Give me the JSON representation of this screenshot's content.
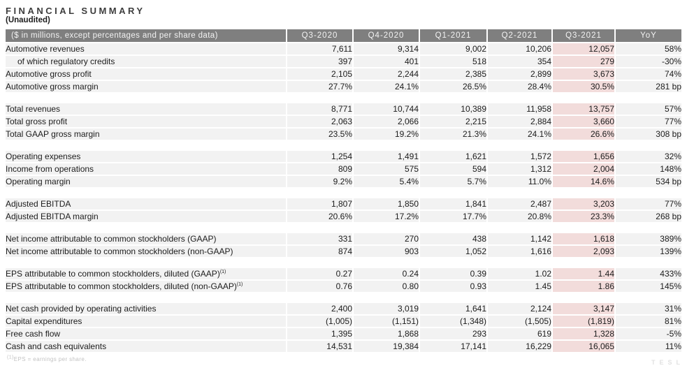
{
  "title": "FINANCIAL SUMMARY",
  "subtitle": "(Unaudited)",
  "table": {
    "header": [
      "($ in millions, except percentages and per share data)",
      "Q3-2020",
      "Q4-2020",
      "Q1-2021",
      "Q2-2021",
      "Q3-2021",
      "YoY"
    ],
    "highlight_column": "Q3-2021",
    "sections": [
      {
        "rows": [
          {
            "label": "Automotive revenues",
            "indent": false,
            "sup": "",
            "values": [
              "7,611",
              "9,314",
              "9,002",
              "10,206",
              "12,057",
              "58%"
            ]
          },
          {
            "label": "of which regulatory credits",
            "indent": true,
            "sup": "",
            "values": [
              "397",
              "401",
              "518",
              "354",
              "279",
              "-30%"
            ]
          },
          {
            "label": "Automotive gross profit",
            "indent": false,
            "sup": "",
            "values": [
              "2,105",
              "2,244",
              "2,385",
              "2,899",
              "3,673",
              "74%"
            ]
          },
          {
            "label": "Automotive gross margin",
            "indent": false,
            "sup": "",
            "values": [
              "27.7%",
              "24.1%",
              "26.5%",
              "28.4%",
              "30.5%",
              "281 bp"
            ]
          }
        ]
      },
      {
        "rows": [
          {
            "label": "Total revenues",
            "indent": false,
            "sup": "",
            "values": [
              "8,771",
              "10,744",
              "10,389",
              "11,958",
              "13,757",
              "57%"
            ]
          },
          {
            "label": "Total gross profit",
            "indent": false,
            "sup": "",
            "values": [
              "2,063",
              "2,066",
              "2,215",
              "2,884",
              "3,660",
              "77%"
            ]
          },
          {
            "label": "Total GAAP gross margin",
            "indent": false,
            "sup": "",
            "values": [
              "23.5%",
              "19.2%",
              "21.3%",
              "24.1%",
              "26.6%",
              "308 bp"
            ]
          }
        ]
      },
      {
        "rows": [
          {
            "label": "Operating expenses",
            "indent": false,
            "sup": "",
            "values": [
              "1,254",
              "1,491",
              "1,621",
              "1,572",
              "1,656",
              "32%"
            ]
          },
          {
            "label": "Income from operations",
            "indent": false,
            "sup": "",
            "values": [
              "809",
              "575",
              "594",
              "1,312",
              "2,004",
              "148%"
            ]
          },
          {
            "label": "Operating margin",
            "indent": false,
            "sup": "",
            "values": [
              "9.2%",
              "5.4%",
              "5.7%",
              "11.0%",
              "14.6%",
              "534 bp"
            ]
          }
        ]
      },
      {
        "rows": [
          {
            "label": "Adjusted EBITDA",
            "indent": false,
            "sup": "",
            "values": [
              "1,807",
              "1,850",
              "1,841",
              "2,487",
              "3,203",
              "77%"
            ]
          },
          {
            "label": "Adjusted EBITDA margin",
            "indent": false,
            "sup": "",
            "values": [
              "20.6%",
              "17.2%",
              "17.7%",
              "20.8%",
              "23.3%",
              "268 bp"
            ]
          }
        ]
      },
      {
        "rows": [
          {
            "label": "Net income attributable to common stockholders (GAAP)",
            "indent": false,
            "sup": "",
            "values": [
              "331",
              "270",
              "438",
              "1,142",
              "1,618",
              "389%"
            ]
          },
          {
            "label": "Net income attributable to common stockholders (non-GAAP)",
            "indent": false,
            "sup": "",
            "values": [
              "874",
              "903",
              "1,052",
              "1,616",
              "2,093",
              "139%"
            ]
          }
        ]
      },
      {
        "rows": [
          {
            "label": "EPS attributable to common stockholders, diluted (GAAP)",
            "indent": false,
            "sup": "(1)",
            "values": [
              "0.27",
              "0.24",
              "0.39",
              "1.02",
              "1.44",
              "433%"
            ]
          },
          {
            "label": "EPS attributable to common stockholders, diluted (non-GAAP)",
            "indent": false,
            "sup": "(1)",
            "values": [
              "0.76",
              "0.80",
              "0.93",
              "1.45",
              "1.86",
              "145%"
            ]
          }
        ]
      },
      {
        "rows": [
          {
            "label": "Net cash provided by operating activities",
            "indent": false,
            "sup": "",
            "values": [
              "2,400",
              "3,019",
              "1,641",
              "2,124",
              "3,147",
              "31%"
            ]
          },
          {
            "label": "Capital expenditures",
            "indent": false,
            "sup": "",
            "values": [
              "(1,005)",
              "(1,151)",
              "(1,348)",
              "(1,505)",
              "(1,819)",
              "81%"
            ]
          },
          {
            "label": "Free cash flow",
            "indent": false,
            "sup": "",
            "values": [
              "1,395",
              "1,868",
              "293",
              "619",
              "1,328",
              "-5%"
            ]
          },
          {
            "label": "Cash and cash equivalents",
            "indent": false,
            "sup": "",
            "values": [
              "14,531",
              "19,384",
              "17,141",
              "16,229",
              "16,065",
              "11%"
            ]
          }
        ]
      }
    ]
  },
  "footnote": {
    "sup": "(1)",
    "text": "EPS = earnings per share."
  },
  "watermark": "TESL",
  "colors": {
    "header_bg": "#7f7f7f",
    "header_text": "#f2f2f2",
    "row_bg": "#f2f2f2",
    "highlight_bg": "#f2dcdb",
    "footnote_text": "#c2c2c2",
    "watermark_text": "#e2e2e2"
  }
}
